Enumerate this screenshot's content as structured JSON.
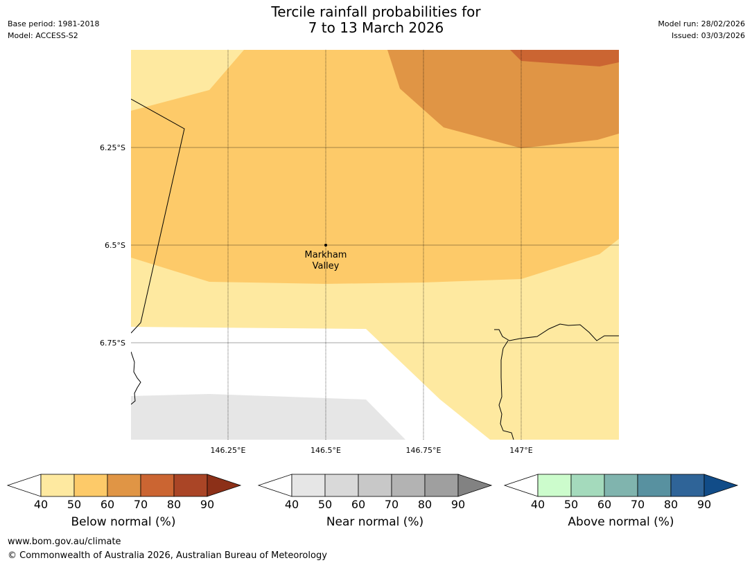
{
  "title": {
    "line1": "Tercile rainfall probabilities for",
    "line2": "7 to 13 March 2026"
  },
  "meta": {
    "base_period": "Base period: 1981-2018",
    "model": "Model: ACCESS-S2",
    "model_run": "Model run: 28/02/2026",
    "issued": "Issued: 03/03/2026"
  },
  "map": {
    "lat_labels": [
      "6.25°S",
      "6.5°S",
      "6.75°S"
    ],
    "lon_labels": [
      "146.25°E",
      "146.5°E",
      "146.75°E",
      "147°E"
    ],
    "location": {
      "name_line1": "Markham",
      "name_line2": "Valley"
    }
  },
  "legends": [
    {
      "key": "below",
      "label": "Below normal (%)",
      "ticks": [
        "40",
        "50",
        "60",
        "70",
        "80",
        "90"
      ],
      "colors": [
        "#ffffff",
        "#fee9a0",
        "#fdca69",
        "#e09545",
        "#cb6532",
        "#aa4526",
        "#8c3018"
      ]
    },
    {
      "key": "near",
      "label": "Near normal (%)",
      "ticks": [
        "40",
        "50",
        "60",
        "70",
        "80",
        "90"
      ],
      "colors": [
        "#ffffff",
        "#e6e6e6",
        "#d9d9d9",
        "#c8c8c8",
        "#b3b3b3",
        "#9f9f9f",
        "#828282"
      ]
    },
    {
      "key": "above",
      "label": "Above normal (%)",
      "ticks": [
        "40",
        "50",
        "60",
        "70",
        "80",
        "90"
      ],
      "colors": [
        "#ffffff",
        "#ccfccc",
        "#a4dabc",
        "#80b4ae",
        "#5891a0",
        "#2f6498",
        "#114c88"
      ]
    }
  ],
  "footer": {
    "url": "www.bom.gov.au/climate",
    "copyright": "© Commonwealth of Australia 2026, Australian Bureau of Meteorology"
  }
}
